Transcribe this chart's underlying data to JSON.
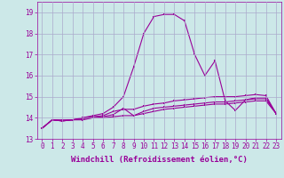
{
  "background_color": "#cce8e8",
  "grid_color": "#aaaacc",
  "line_color": "#990099",
  "xlabel": "Windchill (Refroidissement éolien,°C)",
  "xlabel_fontsize": 6.5,
  "tick_fontsize": 5.5,
  "xlim": [
    -0.5,
    23.5
  ],
  "ylim": [
    13.0,
    19.5
  ],
  "yticks": [
    13,
    14,
    15,
    16,
    17,
    18,
    19
  ],
  "xticks": [
    0,
    1,
    2,
    3,
    4,
    5,
    6,
    7,
    8,
    9,
    10,
    11,
    12,
    13,
    14,
    15,
    16,
    17,
    18,
    19,
    20,
    21,
    22,
    23
  ],
  "curve_big_x": [
    0,
    1,
    2,
    3,
    4,
    5,
    6,
    7,
    8,
    9,
    10,
    11,
    12,
    13,
    14,
    15,
    16,
    17,
    18,
    19,
    20,
    21,
    22,
    23
  ],
  "curve_big_y": [
    13.5,
    13.9,
    13.85,
    13.9,
    14.0,
    14.1,
    14.2,
    14.5,
    15.0,
    16.4,
    18.0,
    18.8,
    18.9,
    18.9,
    18.6,
    17.0,
    16.0,
    16.7,
    14.8,
    14.35,
    14.85,
    14.95,
    14.95,
    14.2
  ],
  "curve_mid_x": [
    0,
    1,
    2,
    3,
    4,
    5,
    6,
    7,
    8,
    9,
    10,
    11,
    12,
    13,
    14,
    15,
    16,
    17,
    18,
    19,
    20,
    21,
    22,
    23
  ],
  "curve_mid_y": [
    13.5,
    13.9,
    13.85,
    13.9,
    14.0,
    14.05,
    14.1,
    14.3,
    14.4,
    14.4,
    14.55,
    14.65,
    14.7,
    14.8,
    14.85,
    14.9,
    14.95,
    15.0,
    15.0,
    15.0,
    15.05,
    15.1,
    15.05,
    14.2
  ],
  "curve_low2_x": [
    0,
    1,
    2,
    3,
    4,
    5,
    6,
    7,
    8,
    9,
    10,
    11,
    12,
    13,
    14,
    15,
    16,
    17,
    18,
    19,
    20,
    21,
    22,
    23
  ],
  "curve_low2_y": [
    13.5,
    13.9,
    13.85,
    13.9,
    13.95,
    14.0,
    14.05,
    14.15,
    14.45,
    14.1,
    14.3,
    14.45,
    14.5,
    14.55,
    14.6,
    14.65,
    14.7,
    14.75,
    14.75,
    14.8,
    14.85,
    14.9,
    14.9,
    14.2
  ],
  "curve_low1_x": [
    0,
    1,
    2,
    3,
    4,
    5,
    6,
    7,
    8,
    9,
    10,
    11,
    12,
    13,
    14,
    15,
    16,
    17,
    18,
    19,
    20,
    21,
    22,
    23
  ],
  "curve_low1_y": [
    13.5,
    13.9,
    13.9,
    13.9,
    13.9,
    14.0,
    14.0,
    14.05,
    14.1,
    14.1,
    14.2,
    14.3,
    14.4,
    14.45,
    14.5,
    14.55,
    14.6,
    14.65,
    14.65,
    14.7,
    14.75,
    14.8,
    14.8,
    14.2
  ]
}
